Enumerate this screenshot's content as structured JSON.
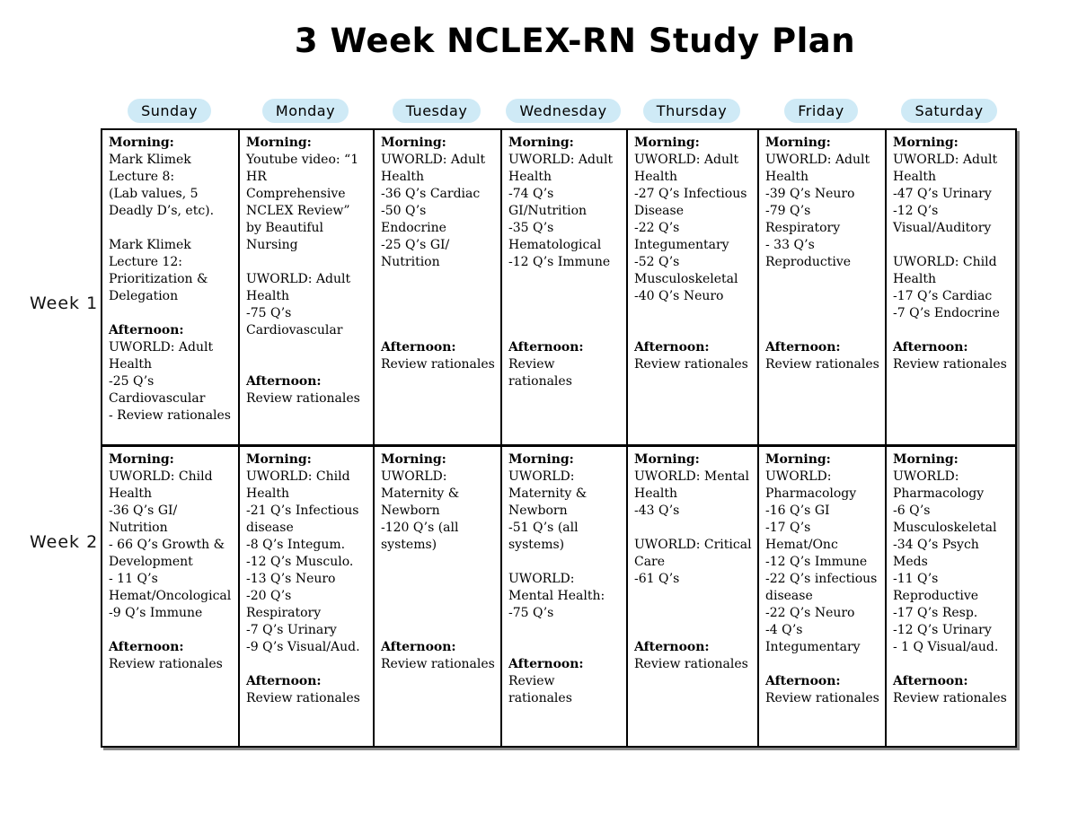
{
  "page_title": "3 Week NCLEX-RN Study Plan",
  "days": [
    "Sunday",
    "Monday",
    "Tuesday",
    "Wednesday",
    "Thursday",
    "Friday",
    "Saturday"
  ],
  "colors": {
    "day_highlight": "#cfeaf6",
    "table_border": "#000000",
    "background": "#ffffff"
  },
  "weeks": [
    {
      "label": "Week 1",
      "cells": [
        {
          "day": "Sunday",
          "lines": [
            {
              "text": "Morning:",
              "bold": true
            },
            {
              "text": "Mark Klimek Lecture 8:"
            },
            {
              "text": "(Lab values, 5 Deadly D’s, etc)."
            },
            {
              "text": ""
            },
            {
              "text": "Mark Klimek Lecture 12: Prioritization & Delegation"
            },
            {
              "text": ""
            },
            {
              "text": "Afternoon:",
              "bold": true
            },
            {
              "text": "UWORLD: Adult Health"
            },
            {
              "text": "-25 Q’s Cardiovascular"
            },
            {
              "text": "- Review rationales"
            }
          ]
        },
        {
          "day": "Monday",
          "lines": [
            {
              "text": "Morning:",
              "bold": true
            },
            {
              "text": "Youtube video: “1 HR Comprehensive NCLEX Review” by Beautiful Nursing"
            },
            {
              "text": ""
            },
            {
              "text": "UWORLD: Adult Health"
            },
            {
              "text": "-75 Q’s Cardiovascular"
            },
            {
              "text": ""
            },
            {
              "text": ""
            },
            {
              "text": "Afternoon:",
              "bold": true
            },
            {
              "text": "Review rationales"
            }
          ]
        },
        {
          "day": "Tuesday",
          "lines": [
            {
              "text": "Morning:",
              "bold": true
            },
            {
              "text": "UWORLD: Adult Health"
            },
            {
              "text": "-36 Q’s Cardiac"
            },
            {
              "text": "-50 Q’s Endocrine"
            },
            {
              "text": "-25 Q’s GI/ Nutrition"
            },
            {
              "text": ""
            },
            {
              "text": ""
            },
            {
              "text": ""
            },
            {
              "text": ""
            },
            {
              "text": "Afternoon:",
              "bold": true
            },
            {
              "text": "Review rationales"
            }
          ]
        },
        {
          "day": "Wednesday",
          "lines": [
            {
              "text": "Morning:",
              "bold": true
            },
            {
              "text": "UWORLD: Adult Health"
            },
            {
              "text": "-74 Q’s GI/Nutrition"
            },
            {
              "text": "-35 Q’s Hematological"
            },
            {
              "text": "-12 Q’s Immune"
            },
            {
              "text": ""
            },
            {
              "text": ""
            },
            {
              "text": ""
            },
            {
              "text": ""
            },
            {
              "text": "Afternoon:",
              "bold": true
            },
            {
              "text": "Review rationales"
            }
          ]
        },
        {
          "day": "Thursday",
          "lines": [
            {
              "text": "Morning:",
              "bold": true
            },
            {
              "text": "UWORLD: Adult Health"
            },
            {
              "text": "-27 Q’s Infectious Disease"
            },
            {
              "text": "-22 Q’s Integumentary"
            },
            {
              "text": "-52 Q’s Musculoskeletal"
            },
            {
              "text": "-40 Q’s Neuro"
            },
            {
              "text": ""
            },
            {
              "text": ""
            },
            {
              "text": "Afternoon:",
              "bold": true
            },
            {
              "text": "Review rationales"
            }
          ]
        },
        {
          "day": "Friday",
          "lines": [
            {
              "text": "Morning:",
              "bold": true
            },
            {
              "text": "UWORLD: Adult Health"
            },
            {
              "text": "-39 Q’s Neuro"
            },
            {
              "text": "-79 Q’s Respiratory"
            },
            {
              "text": "- 33 Q’s Reproductive"
            },
            {
              "text": ""
            },
            {
              "text": ""
            },
            {
              "text": ""
            },
            {
              "text": ""
            },
            {
              "text": "Afternoon:",
              "bold": true
            },
            {
              "text": "Review rationales"
            }
          ]
        },
        {
          "day": "Saturday",
          "lines": [
            {
              "text": "Morning:",
              "bold": true
            },
            {
              "text": "UWORLD: Adult Health"
            },
            {
              "text": "-47 Q’s Urinary"
            },
            {
              "text": "-12 Q’s Visual/Auditory"
            },
            {
              "text": ""
            },
            {
              "text": "UWORLD: Child Health"
            },
            {
              "text": "-17 Q’s Cardiac"
            },
            {
              "text": "-7 Q’s Endocrine"
            },
            {
              "text": ""
            },
            {
              "text": "Afternoon:",
              "bold": true
            },
            {
              "text": "Review rationales"
            }
          ]
        }
      ]
    },
    {
      "label": "Week 2",
      "cells": [
        {
          "day": "Sunday",
          "lines": [
            {
              "text": "Morning:",
              "bold": true
            },
            {
              "text": "UWORLD: Child Health"
            },
            {
              "text": "-36 Q’s GI/ Nutrition"
            },
            {
              "text": "- 66 Q’s Growth & Development"
            },
            {
              "text": "- 11 Q’s Hemat/Oncological"
            },
            {
              "text": "-9 Q’s Immune"
            },
            {
              "text": ""
            },
            {
              "text": "Afternoon:",
              "bold": true
            },
            {
              "text": "Review rationales"
            }
          ]
        },
        {
          "day": "Monday",
          "lines": [
            {
              "text": "Morning:",
              "bold": true
            },
            {
              "text": "UWORLD: Child Health"
            },
            {
              "text": "-21 Q’s Infectious disease"
            },
            {
              "text": "-8 Q’s Integum."
            },
            {
              "text": "-12 Q’s Musculo."
            },
            {
              "text": "-13 Q’s Neuro"
            },
            {
              "text": "-20 Q’s Respiratory"
            },
            {
              "text": "-7 Q’s Urinary"
            },
            {
              "text": "-9 Q’s Visual/Aud."
            },
            {
              "text": ""
            },
            {
              "text": "Afternoon:",
              "bold": true
            },
            {
              "text": "Review rationales"
            }
          ]
        },
        {
          "day": "Tuesday",
          "lines": [
            {
              "text": "Morning:",
              "bold": true
            },
            {
              "text": "UWORLD: Maternity & Newborn"
            },
            {
              "text": "-120 Q’s (all systems)"
            },
            {
              "text": ""
            },
            {
              "text": ""
            },
            {
              "text": ""
            },
            {
              "text": ""
            },
            {
              "text": ""
            },
            {
              "text": "Afternoon:",
              "bold": true
            },
            {
              "text": "Review rationales"
            }
          ]
        },
        {
          "day": "Wednesday",
          "lines": [
            {
              "text": "Morning:",
              "bold": true
            },
            {
              "text": "UWORLD: Maternity & Newborn"
            },
            {
              "text": "-51 Q’s (all systems)"
            },
            {
              "text": ""
            },
            {
              "text": "UWORLD: Mental Health:"
            },
            {
              "text": "-75 Q’s"
            },
            {
              "text": ""
            },
            {
              "text": ""
            },
            {
              "text": "Afternoon:",
              "bold": true
            },
            {
              "text": "Review rationales"
            }
          ]
        },
        {
          "day": "Thursday",
          "lines": [
            {
              "text": "Morning:",
              "bold": true
            },
            {
              "text": "UWORLD: Mental Health"
            },
            {
              "text": "-43 Q’s"
            },
            {
              "text": ""
            },
            {
              "text": "UWORLD: Critical Care"
            },
            {
              "text": "-61 Q’s"
            },
            {
              "text": ""
            },
            {
              "text": ""
            },
            {
              "text": ""
            },
            {
              "text": "Afternoon:",
              "bold": true
            },
            {
              "text": "Review rationales"
            }
          ]
        },
        {
          "day": "Friday",
          "lines": [
            {
              "text": "Morning:",
              "bold": true
            },
            {
              "text": "UWORLD: Pharmacology"
            },
            {
              "text": "-16 Q’s GI"
            },
            {
              "text": "-17 Q’s Hemat/Onc"
            },
            {
              "text": "-12 Q’s Immune"
            },
            {
              "text": "-22 Q’s infectious disease"
            },
            {
              "text": "-22 Q’s Neuro"
            },
            {
              "text": "-4 Q’s Integumentary"
            },
            {
              "text": ""
            },
            {
              "text": "Afternoon:",
              "bold": true
            },
            {
              "text": "Review rationales"
            }
          ]
        },
        {
          "day": "Saturday",
          "lines": [
            {
              "text": "Morning:",
              "bold": true
            },
            {
              "text": "UWORLD: Pharmacology"
            },
            {
              "text": "-6 Q’s Musculoskeletal"
            },
            {
              "text": "-34 Q’s Psych Meds"
            },
            {
              "text": "-11 Q’s Reproductive"
            },
            {
              "text": "-17 Q’s Resp."
            },
            {
              "text": "-12 Q’s Urinary"
            },
            {
              "text": "- 1 Q Visual/aud."
            },
            {
              "text": ""
            },
            {
              "text": "Afternoon:",
              "bold": true
            },
            {
              "text": "Review rationales"
            }
          ]
        }
      ]
    }
  ]
}
